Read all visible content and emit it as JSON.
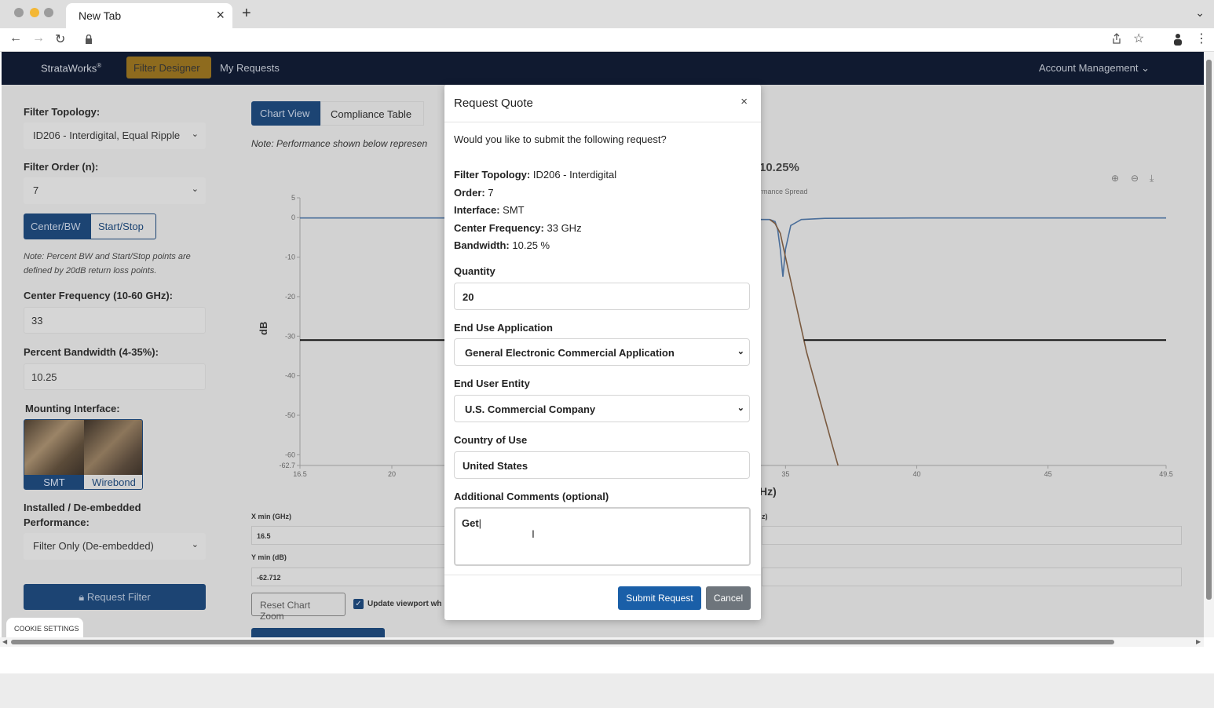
{
  "browser": {
    "tab_title": "New Tab",
    "tab_close": "×",
    "new_tab": "+",
    "tab_menu": "⌄",
    "icons": [
      "back-arrow-icon",
      "forward-arrow-icon",
      "reload-icon",
      "lock-icon",
      "share-icon",
      "star-icon",
      "profile-icon",
      "menu-icon"
    ]
  },
  "nav": {
    "brand": "StrataWorks",
    "brand_sup": "®",
    "items": [
      "Filter Designer",
      "My Requests"
    ],
    "active": "Filter Designer",
    "account": "Account Management",
    "account_chevron": "⌄"
  },
  "sidebar": {
    "topology_label": "Filter Topology:",
    "topology_value": "ID206 - Interdigital, Equal Ripple",
    "order_label": "Filter Order (n):",
    "order_value": "7",
    "mode_buttons": [
      "Center/BW",
      "Start/Stop"
    ],
    "mode_active": "Center/BW",
    "note": "Note: Percent BW and Start/Stop points are defined by 20dB return loss points.",
    "center_label": "Center Frequency (10-60 GHz):",
    "center_value": "33",
    "bw_label": "Percent Bandwidth (4-35%):",
    "bw_value": "10.25",
    "mount_label": "Mounting Interface:",
    "mount_options": [
      "SMT",
      "Wirebond"
    ],
    "mount_active": "SMT",
    "installed_label_1": "Installed / De-embedded",
    "installed_label_2": "Performance:",
    "installed_value": "Filter Only (De-embedded)",
    "request_button": "Request Filter"
  },
  "main": {
    "tabs": [
      "Chart View",
      "Compliance Table"
    ],
    "active_tab": "Chart View",
    "note": "Note: Performance shown below represen",
    "chart_title_visible": "10.25%",
    "legend_visible": "rmance Spread",
    "xaxis_label_visible": "Hz)",
    "xmin_label": "X min (GHz)",
    "xmin_value": "16.5",
    "ymin_label": "Y min (dB)",
    "ymin_value": "-62.712",
    "right_label_visible": "z)",
    "reset_zoom": "Reset Chart Zoom",
    "update_viewport_label": "Update viewport wh",
    "update_viewport_checked": true,
    "zoom_icons": [
      "zoom-in-icon",
      "zoom-out-icon",
      "download-icon"
    ]
  },
  "chart_data": {
    "type": "line",
    "title": "",
    "xlabel": "",
    "ylabel": "dB",
    "xlim": [
      16.5,
      49.5
    ],
    "ylim": [
      -62.7,
      5
    ],
    "xticks": [
      "16.5",
      "20",
      "35",
      "40",
      "45",
      "49.5"
    ],
    "yticks": [
      "5",
      "0",
      "-10",
      "-20",
      "-30",
      "-40",
      "-50",
      "-60",
      "-62.7"
    ],
    "series": [
      {
        "values_x": [
          16.5,
          20,
          22.2,
          34.4,
          34.6,
          34.7,
          34.8,
          34.9,
          35.0,
          35.2,
          35.6,
          36.5,
          40,
          45,
          49.5
        ],
        "values_y": [
          -0.1,
          -0.1,
          -0.1,
          -0.5,
          -1,
          -3,
          -8,
          -15,
          -8,
          -2,
          -0.5,
          -0.2,
          -0.1,
          -0.1,
          -0.1
        ],
        "color": "#4a6e9a"
      },
      {
        "values_x": [
          34.4,
          34.6,
          34.8,
          35.0,
          35.4,
          35.8,
          36.3,
          36.8,
          37.0
        ],
        "values_y": [
          -0.5,
          -1.5,
          -4,
          -10,
          -22,
          -34,
          -46,
          -58,
          -62.7
        ],
        "color": "#7a5a40"
      },
      {
        "values_x": [
          16.5,
          22.2
        ],
        "values_y": [
          -31,
          -31
        ],
        "color": "#111111"
      },
      {
        "values_x": [
          35.7,
          49.5
        ],
        "values_y": [
          -31,
          -31
        ],
        "color": "#111111"
      }
    ]
  },
  "modal": {
    "title": "Request Quote",
    "close": "×",
    "question": "Would you like to submit the following request?",
    "summary": [
      {
        "label": "Filter Topology:",
        "value": "ID206 - Interdigital"
      },
      {
        "label": "Order:",
        "value": "7"
      },
      {
        "label": "Interface:",
        "value": "SMT"
      },
      {
        "label": "Center Frequency:",
        "value": "33 GHz"
      },
      {
        "label": "Bandwidth:",
        "value": "10.25 %"
      }
    ],
    "quantity_label": "Quantity",
    "quantity_value": "20",
    "end_use_label": "End Use Application",
    "end_use_value": "General Electronic Commercial Application",
    "end_user_label": "End User Entity",
    "end_user_value": "U.S. Commercial Company",
    "country_label": "Country of Use",
    "country_value": "United States",
    "comments_label": "Additional Comments (optional)",
    "comments_value": "Get",
    "submit": "Submit Request",
    "cancel": "Cancel"
  },
  "cookie": "COOKIE SETTINGS",
  "colors": {
    "nav_bg": "#101a30",
    "accent_blue": "#1c4473",
    "submit_blue": "#1a5fa8",
    "active_gold": "#8e6b1e",
    "cancel_gray": "#6e757c"
  }
}
